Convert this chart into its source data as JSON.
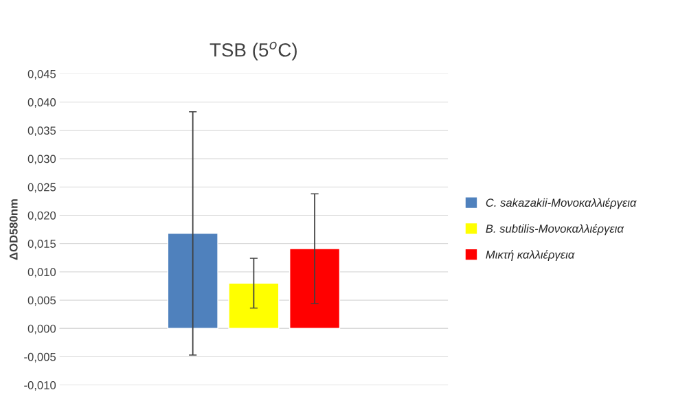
{
  "chart_data": {
    "type": "bar",
    "title": "TSB (5$^{o}$C)",
    "ylabel": "ΔOD580nm",
    "categories": [
      null
    ],
    "series": [
      {
        "name": "C. sakazakii-Μονοκαλλιέργεια",
        "color": "#4f81bd",
        "values": [
          0.0168
        ],
        "errors": [
          0.0215
        ]
      },
      {
        "name": "B. subtilis-Μονοκαλλιέργεια",
        "color": "#ffff00",
        "values": [
          0.008
        ],
        "errors": [
          0.0044
        ]
      },
      {
        "name": "Μικτή καλλιέργεια",
        "color": "#ff0000",
        "values": [
          0.0141
        ],
        "errors": [
          0.0097
        ]
      }
    ],
    "ylim": [
      -0.01,
      0.045
    ],
    "yticks": [
      {
        "value": -0.01,
        "label": "-0,010"
      },
      {
        "value": -0.005,
        "label": "-0,005"
      },
      {
        "value": 0,
        "label": "0,000"
      },
      {
        "value": 0.005,
        "label": "0,005"
      },
      {
        "value": 0.01,
        "label": "0,010"
      },
      {
        "value": 0.015,
        "label": "0,015"
      },
      {
        "value": 0.02,
        "label": "0,020"
      },
      {
        "value": 0.025,
        "label": "0,025"
      },
      {
        "value": 0.03,
        "label": "0,030"
      },
      {
        "value": 0.035,
        "label": "0,035"
      },
      {
        "value": 0.04,
        "label": "0,040"
      },
      {
        "value": 0.045,
        "label": "0,045"
      }
    ],
    "grid": "y",
    "legend": "right"
  }
}
